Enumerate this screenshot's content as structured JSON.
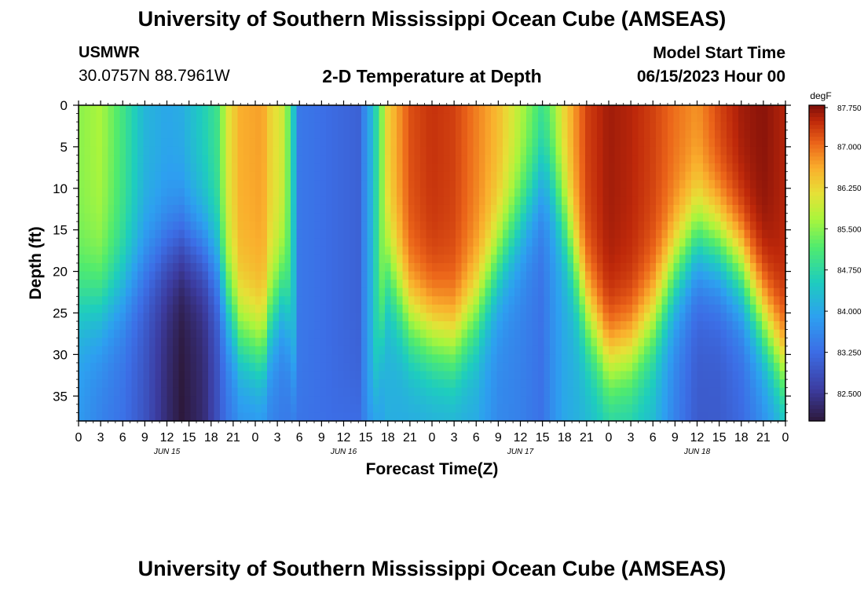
{
  "header": {
    "title": "University of Southern Mississippi Ocean Cube (AMSEAS)",
    "station": "USMWR",
    "latlon": "30.0757N  88.7961W",
    "subtitle": "2-D Temperature at Depth",
    "model_start_label": "Model Start Time",
    "model_start_value": "06/15/2023 Hour 00"
  },
  "footer": {
    "title": "University of Southern Mississippi Ocean Cube (AMSEAS)"
  },
  "chart_data": {
    "type": "heatmap",
    "title": "2-D Temperature at Depth",
    "xlabel": "Forecast Time(Z)",
    "ylabel": "Depth (ft)",
    "x_range_hours": [
      0,
      96
    ],
    "ylim": [
      0,
      38
    ],
    "x_ticks": [
      "0",
      "3",
      "6",
      "9",
      "12",
      "15",
      "18",
      "21",
      "0",
      "3",
      "6",
      "9",
      "12",
      "15",
      "18",
      "21",
      "0",
      "3",
      "6",
      "9",
      "12",
      "15",
      "18",
      "21",
      "0",
      "3",
      "6",
      "9",
      "12",
      "15",
      "18",
      "21",
      "0"
    ],
    "y_ticks": [
      0,
      5,
      10,
      15,
      20,
      25,
      30,
      35
    ],
    "date_labels": [
      {
        "label": "JUN 15",
        "hour": 12
      },
      {
        "label": "JUN 16",
        "hour": 36
      },
      {
        "label": "JUN 17",
        "hour": 60
      },
      {
        "label": "JUN 18",
        "hour": 84
      }
    ],
    "colorbar": {
      "unit": "degF",
      "min": 82.0,
      "max": 87.75,
      "ticks": [
        "87.750",
        "87.000",
        "86.250",
        "85.500",
        "84.750",
        "84.000",
        "83.250",
        "82.500"
      ]
    },
    "contours": [
      {
        "hour": 0,
        "top": 85.5,
        "bottom": 83.8,
        "transition_depth": 24
      },
      {
        "hour": 3,
        "top": 85.7,
        "bottom": 83.5,
        "transition_depth": 24
      },
      {
        "hour": 6,
        "top": 85.0,
        "bottom": 83.3,
        "transition_depth": 22
      },
      {
        "hour": 9,
        "top": 84.2,
        "bottom": 82.9,
        "transition_depth": 19
      },
      {
        "hour": 12,
        "top": 84.0,
        "bottom": 82.3,
        "transition_depth": 17
      },
      {
        "hour": 14,
        "top": 84.1,
        "bottom": 82.0,
        "transition_depth": 16
      },
      {
        "hour": 17,
        "top": 84.6,
        "bottom": 82.3,
        "transition_depth": 17
      },
      {
        "hour": 19,
        "top": 85.0,
        "bottom": 82.9,
        "transition_depth": 19
      },
      {
        "hour": 20,
        "top": 86.0,
        "bottom": 83.3,
        "transition_depth": 23
      },
      {
        "hour": 22,
        "top": 86.6,
        "bottom": 83.6,
        "transition_depth": 28
      },
      {
        "hour": 25,
        "top": 86.7,
        "bottom": 83.6,
        "transition_depth": 30
      },
      {
        "hour": 26,
        "top": 86.3,
        "bottom": 83.5,
        "transition_depth": 26
      },
      {
        "hour": 28,
        "top": 85.9,
        "bottom": 83.4,
        "transition_depth": 22
      },
      {
        "hour": 30,
        "top": 83.4,
        "bottom": 83.3,
        "transition_depth": 38
      },
      {
        "hour": 35,
        "top": 83.2,
        "bottom": 83.3,
        "transition_depth": 38
      },
      {
        "hour": 38,
        "top": 83.1,
        "bottom": 83.4,
        "transition_depth": 38
      },
      {
        "hour": 40,
        "top": 84.3,
        "bottom": 83.6,
        "transition_depth": 38
      },
      {
        "hour": 42,
        "top": 86.3,
        "bottom": 84.1,
        "transition_depth": 20
      },
      {
        "hour": 45,
        "top": 87.2,
        "bottom": 84.0,
        "transition_depth": 26
      },
      {
        "hour": 48,
        "top": 87.4,
        "bottom": 84.0,
        "transition_depth": 28
      },
      {
        "hour": 51,
        "top": 87.3,
        "bottom": 84.0,
        "transition_depth": 29
      },
      {
        "hour": 54,
        "top": 86.9,
        "bottom": 84.0,
        "transition_depth": 25
      },
      {
        "hour": 57,
        "top": 86.5,
        "bottom": 83.6,
        "transition_depth": 19
      },
      {
        "hour": 60,
        "top": 85.8,
        "bottom": 83.5,
        "transition_depth": 14
      },
      {
        "hour": 63,
        "top": 85.0,
        "bottom": 83.3,
        "transition_depth": 9
      },
      {
        "hour": 64,
        "top": 85.4,
        "bottom": 83.6,
        "transition_depth": 9
      },
      {
        "hour": 66,
        "top": 86.3,
        "bottom": 84.0,
        "transition_depth": 14
      },
      {
        "hour": 69,
        "top": 87.3,
        "bottom": 84.2,
        "transition_depth": 25
      },
      {
        "hour": 72,
        "top": 87.6,
        "bottom": 84.4,
        "transition_depth": 31
      },
      {
        "hour": 75,
        "top": 87.5,
        "bottom": 84.4,
        "transition_depth": 30
      },
      {
        "hour": 78,
        "top": 87.3,
        "bottom": 84.2,
        "transition_depth": 26
      },
      {
        "hour": 81,
        "top": 87.0,
        "bottom": 83.5,
        "transition_depth": 20
      },
      {
        "hour": 84,
        "top": 86.8,
        "bottom": 83.0,
        "transition_depth": 16
      },
      {
        "hour": 87,
        "top": 87.3,
        "bottom": 83.0,
        "transition_depth": 17
      },
      {
        "hour": 90,
        "top": 87.6,
        "bottom": 83.2,
        "transition_depth": 20
      },
      {
        "hour": 93,
        "top": 87.7,
        "bottom": 83.6,
        "transition_depth": 26
      },
      {
        "hour": 96,
        "top": 87.5,
        "bottom": 84.0,
        "transition_depth": 32
      }
    ]
  }
}
